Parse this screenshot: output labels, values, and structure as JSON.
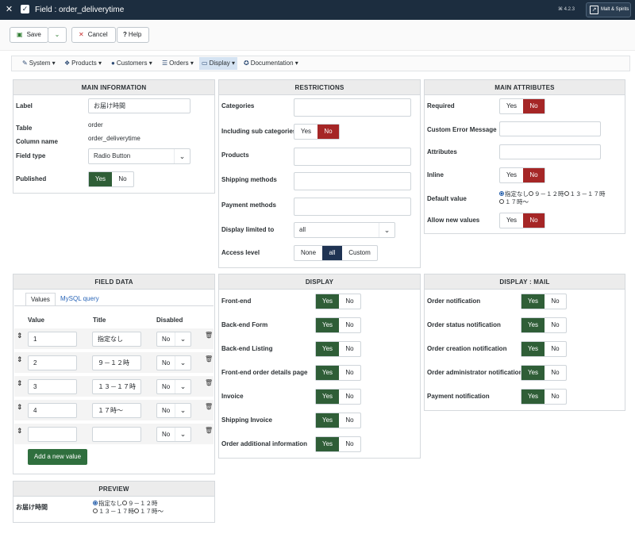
{
  "header": {
    "title": "Field : order_deliverytime",
    "version": "⌘ 4.2.3",
    "site": "Malt & Spirits"
  },
  "toolbar": {
    "save": "Save",
    "cancel": "Cancel",
    "help": "Help"
  },
  "menu": {
    "system": "System",
    "products": "Products",
    "customers": "Customers",
    "orders": "Orders",
    "display": "Display",
    "documentation": "Documentation"
  },
  "main_info": {
    "title": "MAIN INFORMATION",
    "label_lbl": "Label",
    "label_val": "お届け時間",
    "table_lbl": "Table",
    "table_val": "order",
    "column_lbl": "Column name",
    "column_val": "order_deliverytime",
    "fieldtype_lbl": "Field type",
    "fieldtype_val": "Radio Button",
    "published_lbl": "Published",
    "yes": "Yes",
    "no": "No"
  },
  "restrictions": {
    "title": "RESTRICTIONS",
    "categories": "Categories",
    "subcat": "Including sub categories",
    "products": "Products",
    "shipping": "Shipping methods",
    "payment": "Payment methods",
    "limited": "Display limited to",
    "limited_val": "all",
    "access": "Access level",
    "none": "None",
    "all": "all",
    "custom": "Custom",
    "yes": "Yes",
    "no": "No"
  },
  "main_attr": {
    "title": "MAIN ATTRIBUTES",
    "required": "Required",
    "error_msg": "Custom Error Message",
    "attributes": "Attributes",
    "inline": "Inline",
    "default": "Default value",
    "default_opts": [
      "指定なし",
      "９－１２時",
      "１３－１７時",
      "１７時～"
    ],
    "allow_new": "Allow new values",
    "yes": "Yes",
    "no": "No"
  },
  "field_data": {
    "title": "FIELD DATA",
    "tab_values": "Values",
    "tab_mysql": "MySQL query",
    "col_value": "Value",
    "col_title": "Title",
    "col_disabled": "Disabled",
    "rows": [
      {
        "value": "1",
        "title": "指定なし",
        "disabled": "No"
      },
      {
        "value": "2",
        "title": "９－１２時",
        "disabled": "No"
      },
      {
        "value": "3",
        "title": "１３－１７時",
        "disabled": "No"
      },
      {
        "value": "4",
        "title": "１７時～",
        "disabled": "No"
      },
      {
        "value": "",
        "title": "",
        "disabled": "No"
      }
    ],
    "add": "Add a new value"
  },
  "display": {
    "title": "DISPLAY",
    "items": [
      "Front-end",
      "Back-end Form",
      "Back-end Listing",
      "Front-end order details page",
      "Invoice",
      "Shipping Invoice",
      "Order additional information"
    ],
    "yes": "Yes",
    "no": "No"
  },
  "display_mail": {
    "title": "DISPLAY : MAIL",
    "items": [
      "Order notification",
      "Order status notification",
      "Order creation notification",
      "Order administrator notification",
      "Payment notification"
    ],
    "yes": "Yes",
    "no": "No"
  },
  "preview": {
    "title": "PREVIEW",
    "label": "お届け時間",
    "opts": [
      "指定なし",
      "９－１２時",
      "１３－１７時",
      "１７時～"
    ]
  },
  "colors": {
    "header": "#1c2d3f",
    "green": "#2f5e37",
    "red": "#a52626",
    "navy": "#1f3353"
  }
}
